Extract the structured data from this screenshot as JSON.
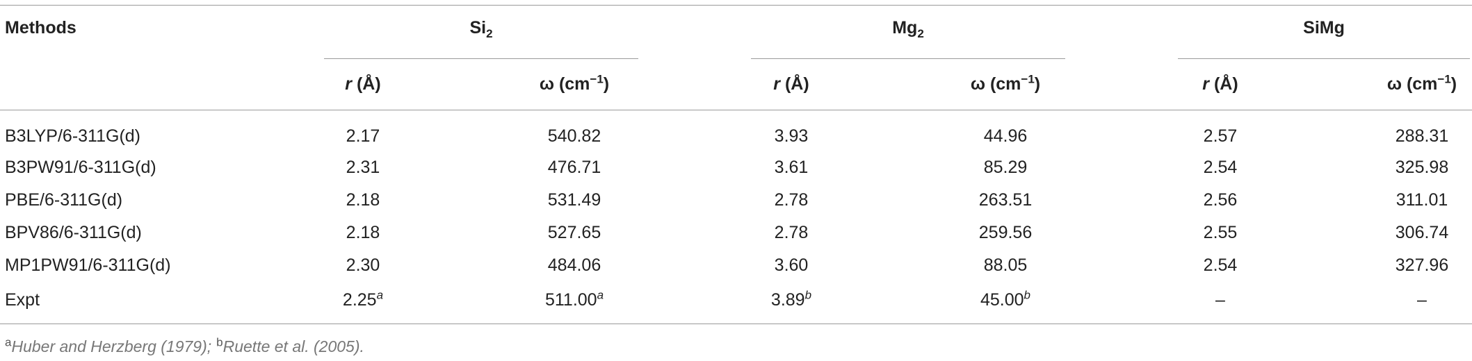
{
  "table": {
    "header": {
      "methods": "Methods",
      "groups": [
        {
          "name": "Si",
          "sub": "2"
        },
        {
          "name": "Mg",
          "sub": "2"
        },
        {
          "name": "SiMg"
        }
      ],
      "subheaders": [
        {
          "symbol": "r",
          "unit": "(Å)"
        },
        {
          "symbol": "ω",
          "unit": "(cm",
          "sup": "−1",
          "close": ")"
        },
        {
          "symbol": "r",
          "unit": "(Å)"
        },
        {
          "symbol": "ω",
          "unit": "(cm",
          "sup": "−1",
          "close": ")"
        },
        {
          "symbol": "r",
          "unit": "(Å)"
        },
        {
          "symbol": "ω",
          "unit": "(cm",
          "sup": "−1",
          "close": ")"
        }
      ]
    },
    "rows": [
      {
        "method": "B3LYP/6-311G(d)",
        "cells": [
          "2.17",
          "540.82",
          "3.93",
          "44.96",
          "2.57",
          "288.31"
        ]
      },
      {
        "method": "B3PW91/6-311G(d)",
        "cells": [
          "2.31",
          "476.71",
          "3.61",
          "85.29",
          "2.54",
          "325.98"
        ]
      },
      {
        "method": "PBE/6-311G(d)",
        "cells": [
          "2.18",
          "531.49",
          "2.78",
          "263.51",
          "2.56",
          "311.01"
        ]
      },
      {
        "method": "BPV86/6-311G(d)",
        "cells": [
          "2.18",
          "527.65",
          "2.78",
          "259.56",
          "2.55",
          "306.74"
        ]
      },
      {
        "method": "MP1PW91/6-311G(d)",
        "cells": [
          "2.30",
          "484.06",
          "3.60",
          "88.05",
          "2.54",
          "327.96"
        ]
      },
      {
        "method": "Expt",
        "cells": [
          {
            "value": "2.25",
            "note": "a"
          },
          {
            "value": "511.00",
            "note": "a"
          },
          {
            "value": "3.89",
            "note": "b"
          },
          {
            "value": "45.00",
            "note": "b"
          },
          "–",
          "–"
        ]
      }
    ],
    "footnotes": {
      "items": [
        {
          "mark": "a",
          "text": "Huber and Herzberg (1979)"
        },
        {
          "mark": "b",
          "text": "Ruette et al. (2005)"
        }
      ],
      "separator": ";",
      "end": "."
    }
  }
}
